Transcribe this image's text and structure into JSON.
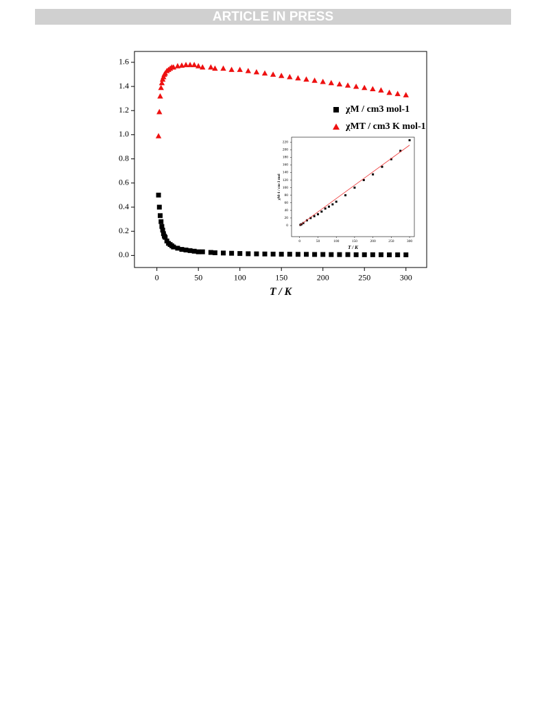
{
  "header": {
    "banner": "ARTICLE IN PRESS"
  },
  "chart_data": [
    {
      "type": "scatter",
      "xlabel": "T / K",
      "x": [
        2,
        3,
        4,
        5,
        6,
        7,
        8,
        9,
        10,
        12,
        14,
        16,
        18,
        20,
        25,
        30,
        35,
        40,
        45,
        50,
        55,
        65,
        70,
        80,
        90,
        100,
        110,
        120,
        130,
        140,
        150,
        160,
        170,
        180,
        190,
        200,
        210,
        220,
        230,
        240,
        250,
        260,
        270,
        280,
        290,
        300
      ],
      "series": [
        {
          "name": "χM / cm3 mol-1",
          "color": "#000000",
          "marker": "square",
          "values": [
            0.5,
            0.4,
            0.33,
            0.28,
            0.24,
            0.21,
            0.18,
            0.16,
            0.15,
            0.12,
            0.1,
            0.09,
            0.08,
            0.07,
            0.06,
            0.05,
            0.045,
            0.04,
            0.035,
            0.03,
            0.03,
            0.025,
            0.022,
            0.02,
            0.018,
            0.016,
            0.014,
            0.013,
            0.012,
            0.011,
            0.01,
            0.01,
            0.009,
            0.009,
            0.008,
            0.008,
            0.007,
            0.007,
            0.007,
            0.006,
            0.006,
            0.006,
            0.006,
            0.005,
            0.005,
            0.005
          ]
        },
        {
          "name": "χMT / cm3 K mol-1",
          "color": "#ee1111",
          "marker": "triangle",
          "values": [
            0.99,
            1.19,
            1.32,
            1.39,
            1.43,
            1.46,
            1.48,
            1.5,
            1.51,
            1.53,
            1.54,
            1.55,
            1.56,
            1.56,
            1.57,
            1.575,
            1.58,
            1.58,
            1.58,
            1.57,
            1.56,
            1.56,
            1.55,
            1.55,
            1.54,
            1.54,
            1.53,
            1.52,
            1.51,
            1.5,
            1.49,
            1.48,
            1.47,
            1.46,
            1.45,
            1.44,
            1.43,
            1.42,
            1.41,
            1.4,
            1.39,
            1.38,
            1.37,
            1.35,
            1.34,
            1.33
          ]
        }
      ],
      "xlim": [
        -27,
        325
      ],
      "ylim": [
        -0.1,
        1.69
      ],
      "xticks": [
        0,
        50,
        100,
        150,
        200,
        250,
        300
      ],
      "yticks": [
        {
          "value": 0,
          "label": "0.0"
        },
        0.2,
        0.4,
        0.6,
        0.8,
        {
          "value": 1,
          "label": "1.0"
        },
        1.2,
        1.4,
        1.6
      ]
    },
    {
      "type": "scatter",
      "xlabel": "T / K",
      "ylabel": "χM-1 / cm-3 mol",
      "series": [
        {
          "color": "#000000",
          "marker": "square",
          "x": [
            2,
            5,
            10,
            20,
            30,
            40,
            50,
            60,
            70,
            80,
            90,
            100,
            125,
            150,
            175,
            200,
            225,
            250,
            275,
            300
          ],
          "values": [
            2,
            3.6,
            6.7,
            14,
            20,
            25,
            30,
            37,
            45,
            50,
            56,
            63,
            80,
            100,
            120,
            135,
            155,
            175,
            197,
            225
          ]
        },
        {
          "color": "#ee3333",
          "marker": "line",
          "x": [
            0,
            300
          ],
          "values": [
            1,
            212
          ]
        }
      ],
      "xlim": [
        -22,
        313
      ],
      "ylim": [
        -29,
        233
      ],
      "xticks": [
        0,
        50,
        100,
        150,
        200,
        250,
        300
      ],
      "yticks": [
        0,
        20,
        40,
        60,
        80,
        100,
        120,
        140,
        160,
        180,
        200,
        220
      ]
    }
  ]
}
